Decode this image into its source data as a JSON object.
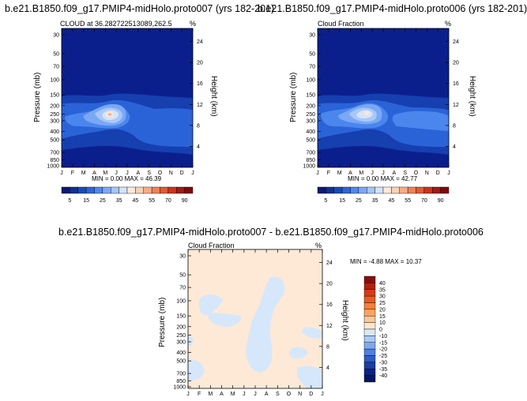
{
  "page_title": "",
  "colors": {
    "deep": "#0b1f8c",
    "mid1": "#163fb0",
    "mid2": "#2a63d8",
    "mid3": "#4b86ee",
    "light1": "#7aa8f5",
    "light2": "#a9c7f7",
    "light3": "#d4e4fa",
    "warm": "#fde7d4",
    "hot": "#f6b28c",
    "diff_warm": "#fde9d6",
    "diff_cool": "#d6e7fb"
  },
  "chart_data": [
    {
      "type": "contour",
      "title": "b.e21.B1850.f09_g17.PMIP4-midHolo.proto007 (yrs 182-201)",
      "subtitle_left": "CLOUD at 36.2827225130​89,262.5",
      "subtitle_right": "%",
      "ylabel": "Pressure (mb)",
      "ylabel_right": "Height (km)",
      "x_ticks": [
        "J",
        "F",
        "M",
        "A",
        "M",
        "J",
        "J",
        "A",
        "S",
        "O",
        "N",
        "D",
        "J"
      ],
      "y_ticks": [
        "30",
        "50",
        "70",
        "100",
        "150",
        "200",
        "250",
        "300",
        "400",
        "500",
        "700",
        "850",
        "1000"
      ],
      "y_ticks_right": [
        "24",
        "20",
        "16",
        "12",
        "8",
        "4"
      ],
      "stats": "MIN =   0.00 MAX =  46.39",
      "colorbar_labels": [
        "5",
        "15",
        "25",
        "35",
        "45",
        "55",
        "70",
        "90"
      ],
      "colorbar_colors": [
        "#0a1a6e",
        "#12308f",
        "#1a4ab3",
        "#2c66d6",
        "#4f88ee",
        "#7ba9f5",
        "#a7c6f8",
        "#d2e3fb",
        "#fbeadb",
        "#f9d1b6",
        "#f5ad86",
        "#ee8256",
        "#e25b31",
        "#c9341a",
        "#a31a10",
        "#7d0a0a"
      ],
      "max_location": {
        "month": "May-Jun",
        "pressure_mb": 250,
        "value": 46.39
      }
    },
    {
      "type": "contour",
      "title": "b.e21.B1850.f09_g17.PMIP4-midHolo.proto006 (yrs 182-201)",
      "subtitle_left": "Cloud Fraction",
      "subtitle_right": "%",
      "ylabel": "Pressure (mb)",
      "ylabel_right": "Height (km)",
      "x_ticks": [
        "J",
        "F",
        "M",
        "A",
        "M",
        "J",
        "J",
        "A",
        "S",
        "O",
        "N",
        "D",
        "J"
      ],
      "y_ticks": [
        "30",
        "50",
        "70",
        "100",
        "150",
        "200",
        "250",
        "300",
        "400",
        "500",
        "700",
        "850",
        "1000"
      ],
      "y_ticks_right": [
        "24",
        "20",
        "16",
        "12",
        "8",
        "4"
      ],
      "stats": "MIN =   0.00 MAX =  42.77",
      "colorbar_labels": [
        "5",
        "15",
        "25",
        "35",
        "45",
        "55",
        "70",
        "90"
      ],
      "colorbar_colors": [
        "#0a1a6e",
        "#12308f",
        "#1a4ab3",
        "#2c66d6",
        "#4f88ee",
        "#7ba9f5",
        "#a7c6f8",
        "#d2e3fb",
        "#fbeadb",
        "#f9d1b6",
        "#f5ad86",
        "#ee8256",
        "#e25b31",
        "#c9341a",
        "#a31a10",
        "#7d0a0a"
      ],
      "max_location": {
        "month": "May-Jun",
        "pressure_mb": 250,
        "value": 42.77
      }
    },
    {
      "type": "contour",
      "title": "b.e21.B1850.f09_g17.PMIP4-midHolo.proto007 - b.e21.B1850.f09_g17.PMIP4-midHolo.proto006",
      "subtitle_left": "Cloud Fraction",
      "subtitle_right": "%",
      "ylabel": "Pressure (mb)",
      "ylabel_right": "Height (km)",
      "x_ticks": [
        "J",
        "F",
        "M",
        "A",
        "M",
        "J",
        "J",
        "A",
        "S",
        "O",
        "N",
        "D",
        "J"
      ],
      "y_ticks": [
        "30",
        "50",
        "70",
        "100",
        "150",
        "200",
        "250",
        "300",
        "400",
        "500",
        "700",
        "850",
        "1000"
      ],
      "y_ticks_right": [
        "24",
        "20",
        "16",
        "12",
        "8",
        "4"
      ],
      "stats": "MIN =  -4.88 MAX =  10.37",
      "colorbar_labels": [
        "40",
        "35",
        "30",
        "25",
        "20",
        "15",
        "10",
        "0",
        "-10",
        "-15",
        "-20",
        "-25",
        "-30",
        "-35",
        "-40"
      ],
      "colorbar_colors": [
        "#8a0d0d",
        "#b3200f",
        "#d63b17",
        "#ec5a22",
        "#f6803a",
        "#f9a461",
        "#fbc796",
        "#fde6cf",
        "#d8e8fb",
        "#aac9f5",
        "#7ea9ee",
        "#4f80de",
        "#2f5cc4",
        "#1b3ea3",
        "#0d2480",
        "#061860"
      ]
    }
  ]
}
